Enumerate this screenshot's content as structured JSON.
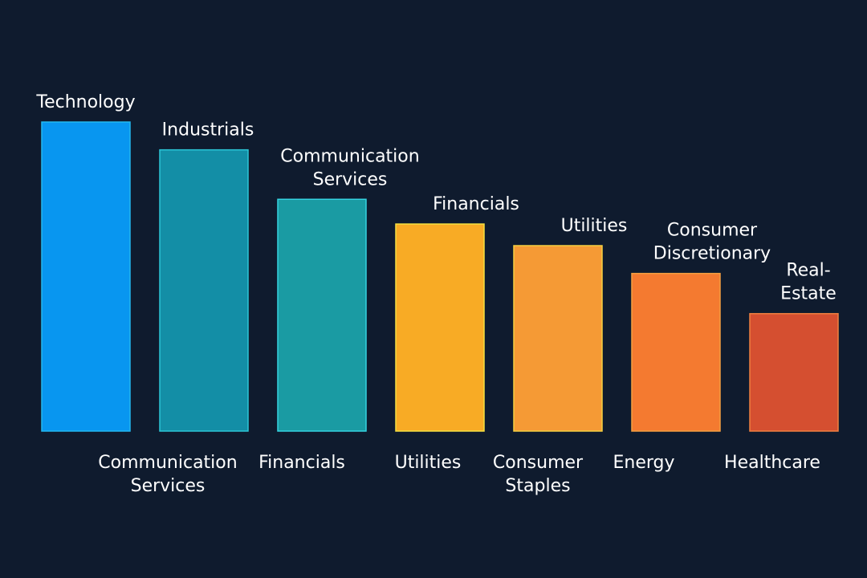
{
  "chart_data": {
    "type": "bar",
    "title": "",
    "xlabel": "",
    "ylabel": "",
    "ylim": [
      0,
      100
    ],
    "grid": false,
    "axes_visible": false,
    "background_color": "#0f1b2e",
    "bars": [
      {
        "top_label": "Technology",
        "bottom_label": "",
        "value": 100,
        "color": "#0896f0",
        "border": "#22b8f0"
      },
      {
        "top_label": "Industrials",
        "bottom_label": "Communication Services",
        "value": 91,
        "color": "#138ea6",
        "border": "#2cc6d6"
      },
      {
        "top_label": "Communication Services",
        "bottom_label": "Financials",
        "value": 75,
        "color": "#1a9ba3",
        "border": "#35d3e0"
      },
      {
        "top_label": "Financials",
        "bottom_label": "Utilities",
        "value": 67,
        "color": "#f8ab25",
        "border": "#f5e040"
      },
      {
        "top_label": "Utilities",
        "bottom_label": "Consumer Staples",
        "value": 60,
        "color": "#f59a35",
        "border": "#f5d040"
      },
      {
        "top_label": "Consumer Discretionary",
        "bottom_label": "Energy",
        "value": 51,
        "color": "#f47a30",
        "border": "#f5a040"
      },
      {
        "top_label": "Real- Estate",
        "bottom_label": "Healthcare",
        "value": 38,
        "color": "#d54f30",
        "border": "#f08040"
      }
    ]
  }
}
